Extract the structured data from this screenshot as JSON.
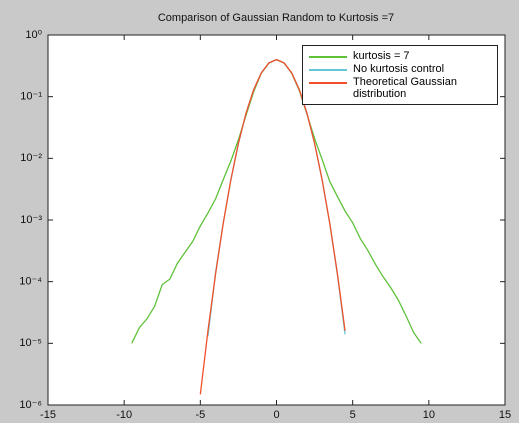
{
  "chart_data": {
    "type": "line",
    "title": "Comparison of Gaussian Random to Kurtosis =7",
    "xlim": [
      -15,
      15
    ],
    "xticks": [
      -15,
      -10,
      -5,
      0,
      5,
      10,
      15
    ],
    "ylim": [
      1e-06,
      1
    ],
    "yscale": "log",
    "yticks": [
      {
        "value": 1e-06,
        "label": "10⁻⁶"
      },
      {
        "value": 1e-05,
        "label": "10⁻⁵"
      },
      {
        "value": 0.0001,
        "label": "10⁻⁴"
      },
      {
        "value": 0.001,
        "label": "10⁻³"
      },
      {
        "value": 0.01,
        "label": "10⁻²"
      },
      {
        "value": 0.1,
        "label": "10⁻¹"
      },
      {
        "value": 1,
        "label": "10⁰"
      }
    ],
    "grid": false,
    "legend": "upper right",
    "series": [
      {
        "name": "kurtosis = 7",
        "color": "#5fc13a",
        "x": [
          -9.5,
          -9,
          -8.5,
          -8,
          -7.5,
          -7,
          -6.5,
          -6,
          -5.5,
          -5,
          -4.5,
          -4,
          -3.5,
          -3,
          -2.5,
          -2,
          -1.5,
          -1,
          -0.5,
          0,
          0.5,
          1,
          1.5,
          2,
          2.5,
          3,
          3.5,
          4,
          4.5,
          5,
          5.5,
          6,
          6.5,
          7,
          7.5,
          8,
          8.5,
          9,
          9.5
        ],
        "values": [
          1e-05,
          1.8e-05,
          2.5e-05,
          4e-05,
          9e-05,
          0.00011,
          0.0002,
          0.0003,
          0.00045,
          0.0008,
          0.0013,
          0.0022,
          0.0045,
          0.009,
          0.02,
          0.05,
          0.12,
          0.24,
          0.35,
          0.4,
          0.35,
          0.24,
          0.125,
          0.052,
          0.021,
          0.0095,
          0.0042,
          0.0024,
          0.0014,
          0.0009,
          0.0005,
          0.00032,
          0.00019,
          0.00012,
          8e-05,
          5e-05,
          2.8e-05,
          1.5e-05,
          1e-05
        ]
      },
      {
        "name": "No kurtosis control",
        "color": "#62c8d8",
        "x": [
          -4.5,
          -4,
          -3.5,
          -3,
          -2.5,
          -2,
          -1.5,
          -1,
          -0.5,
          0,
          0.5,
          1,
          1.5,
          2,
          2.5,
          3,
          3.5,
          4,
          4.5
        ],
        "values": [
          1.3e-05,
          0.00014,
          0.00088,
          0.0044,
          0.0175,
          0.054,
          0.129,
          0.242,
          0.352,
          0.399,
          0.352,
          0.242,
          0.129,
          0.054,
          0.0175,
          0.0044,
          0.00087,
          0.00013,
          1.4e-05
        ]
      },
      {
        "name": "Theoretical Gaussian distribution",
        "color": "#f0502a",
        "x": [
          -5,
          -4.5,
          -4,
          -3.5,
          -3,
          -2.5,
          -2,
          -1.5,
          -1,
          -0.5,
          0,
          0.5,
          1,
          1.5,
          2,
          2.5,
          3,
          3.5,
          4,
          4.5
        ],
        "values": [
          1.487e-06,
          1.598e-05,
          0.0001338,
          0.0008727,
          0.004432,
          0.01753,
          0.05399,
          0.1295,
          0.242,
          0.3521,
          0.3989,
          0.3521,
          0.242,
          0.1295,
          0.05399,
          0.01753,
          0.004432,
          0.0008727,
          0.0001338,
          1.598e-05
        ]
      }
    ]
  }
}
